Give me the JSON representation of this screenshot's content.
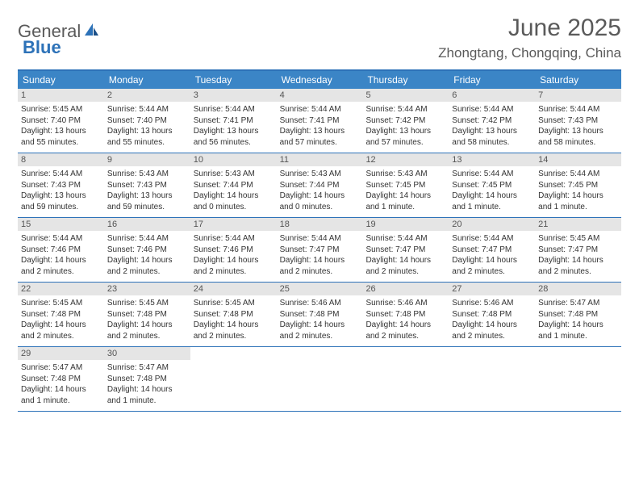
{
  "logo": {
    "word1": "General",
    "word2": "Blue"
  },
  "title": "June 2025",
  "location": "Zhongtang, Chongqing, China",
  "colors": {
    "header_bg": "#3b85c6",
    "border": "#2d72b8",
    "daynum_bg": "#e5e5e5",
    "text": "#333333",
    "muted": "#5a5a5a"
  },
  "day_headers": [
    "Sunday",
    "Monday",
    "Tuesday",
    "Wednesday",
    "Thursday",
    "Friday",
    "Saturday"
  ],
  "weeks": [
    [
      {
        "d": "1",
        "sr": "Sunrise: 5:45 AM",
        "ss": "Sunset: 7:40 PM",
        "dl1": "Daylight: 13 hours",
        "dl2": "and 55 minutes."
      },
      {
        "d": "2",
        "sr": "Sunrise: 5:44 AM",
        "ss": "Sunset: 7:40 PM",
        "dl1": "Daylight: 13 hours",
        "dl2": "and 55 minutes."
      },
      {
        "d": "3",
        "sr": "Sunrise: 5:44 AM",
        "ss": "Sunset: 7:41 PM",
        "dl1": "Daylight: 13 hours",
        "dl2": "and 56 minutes."
      },
      {
        "d": "4",
        "sr": "Sunrise: 5:44 AM",
        "ss": "Sunset: 7:41 PM",
        "dl1": "Daylight: 13 hours",
        "dl2": "and 57 minutes."
      },
      {
        "d": "5",
        "sr": "Sunrise: 5:44 AM",
        "ss": "Sunset: 7:42 PM",
        "dl1": "Daylight: 13 hours",
        "dl2": "and 57 minutes."
      },
      {
        "d": "6",
        "sr": "Sunrise: 5:44 AM",
        "ss": "Sunset: 7:42 PM",
        "dl1": "Daylight: 13 hours",
        "dl2": "and 58 minutes."
      },
      {
        "d": "7",
        "sr": "Sunrise: 5:44 AM",
        "ss": "Sunset: 7:43 PM",
        "dl1": "Daylight: 13 hours",
        "dl2": "and 58 minutes."
      }
    ],
    [
      {
        "d": "8",
        "sr": "Sunrise: 5:44 AM",
        "ss": "Sunset: 7:43 PM",
        "dl1": "Daylight: 13 hours",
        "dl2": "and 59 minutes."
      },
      {
        "d": "9",
        "sr": "Sunrise: 5:43 AM",
        "ss": "Sunset: 7:43 PM",
        "dl1": "Daylight: 13 hours",
        "dl2": "and 59 minutes."
      },
      {
        "d": "10",
        "sr": "Sunrise: 5:43 AM",
        "ss": "Sunset: 7:44 PM",
        "dl1": "Daylight: 14 hours",
        "dl2": "and 0 minutes."
      },
      {
        "d": "11",
        "sr": "Sunrise: 5:43 AM",
        "ss": "Sunset: 7:44 PM",
        "dl1": "Daylight: 14 hours",
        "dl2": "and 0 minutes."
      },
      {
        "d": "12",
        "sr": "Sunrise: 5:43 AM",
        "ss": "Sunset: 7:45 PM",
        "dl1": "Daylight: 14 hours",
        "dl2": "and 1 minute."
      },
      {
        "d": "13",
        "sr": "Sunrise: 5:44 AM",
        "ss": "Sunset: 7:45 PM",
        "dl1": "Daylight: 14 hours",
        "dl2": "and 1 minute."
      },
      {
        "d": "14",
        "sr": "Sunrise: 5:44 AM",
        "ss": "Sunset: 7:45 PM",
        "dl1": "Daylight: 14 hours",
        "dl2": "and 1 minute."
      }
    ],
    [
      {
        "d": "15",
        "sr": "Sunrise: 5:44 AM",
        "ss": "Sunset: 7:46 PM",
        "dl1": "Daylight: 14 hours",
        "dl2": "and 2 minutes."
      },
      {
        "d": "16",
        "sr": "Sunrise: 5:44 AM",
        "ss": "Sunset: 7:46 PM",
        "dl1": "Daylight: 14 hours",
        "dl2": "and 2 minutes."
      },
      {
        "d": "17",
        "sr": "Sunrise: 5:44 AM",
        "ss": "Sunset: 7:46 PM",
        "dl1": "Daylight: 14 hours",
        "dl2": "and 2 minutes."
      },
      {
        "d": "18",
        "sr": "Sunrise: 5:44 AM",
        "ss": "Sunset: 7:47 PM",
        "dl1": "Daylight: 14 hours",
        "dl2": "and 2 minutes."
      },
      {
        "d": "19",
        "sr": "Sunrise: 5:44 AM",
        "ss": "Sunset: 7:47 PM",
        "dl1": "Daylight: 14 hours",
        "dl2": "and 2 minutes."
      },
      {
        "d": "20",
        "sr": "Sunrise: 5:44 AM",
        "ss": "Sunset: 7:47 PM",
        "dl1": "Daylight: 14 hours",
        "dl2": "and 2 minutes."
      },
      {
        "d": "21",
        "sr": "Sunrise: 5:45 AM",
        "ss": "Sunset: 7:47 PM",
        "dl1": "Daylight: 14 hours",
        "dl2": "and 2 minutes."
      }
    ],
    [
      {
        "d": "22",
        "sr": "Sunrise: 5:45 AM",
        "ss": "Sunset: 7:48 PM",
        "dl1": "Daylight: 14 hours",
        "dl2": "and 2 minutes."
      },
      {
        "d": "23",
        "sr": "Sunrise: 5:45 AM",
        "ss": "Sunset: 7:48 PM",
        "dl1": "Daylight: 14 hours",
        "dl2": "and 2 minutes."
      },
      {
        "d": "24",
        "sr": "Sunrise: 5:45 AM",
        "ss": "Sunset: 7:48 PM",
        "dl1": "Daylight: 14 hours",
        "dl2": "and 2 minutes."
      },
      {
        "d": "25",
        "sr": "Sunrise: 5:46 AM",
        "ss": "Sunset: 7:48 PM",
        "dl1": "Daylight: 14 hours",
        "dl2": "and 2 minutes."
      },
      {
        "d": "26",
        "sr": "Sunrise: 5:46 AM",
        "ss": "Sunset: 7:48 PM",
        "dl1": "Daylight: 14 hours",
        "dl2": "and 2 minutes."
      },
      {
        "d": "27",
        "sr": "Sunrise: 5:46 AM",
        "ss": "Sunset: 7:48 PM",
        "dl1": "Daylight: 14 hours",
        "dl2": "and 2 minutes."
      },
      {
        "d": "28",
        "sr": "Sunrise: 5:47 AM",
        "ss": "Sunset: 7:48 PM",
        "dl1": "Daylight: 14 hours",
        "dl2": "and 1 minute."
      }
    ],
    [
      {
        "d": "29",
        "sr": "Sunrise: 5:47 AM",
        "ss": "Sunset: 7:48 PM",
        "dl1": "Daylight: 14 hours",
        "dl2": "and 1 minute."
      },
      {
        "d": "30",
        "sr": "Sunrise: 5:47 AM",
        "ss": "Sunset: 7:48 PM",
        "dl1": "Daylight: 14 hours",
        "dl2": "and 1 minute."
      },
      null,
      null,
      null,
      null,
      null
    ]
  ]
}
